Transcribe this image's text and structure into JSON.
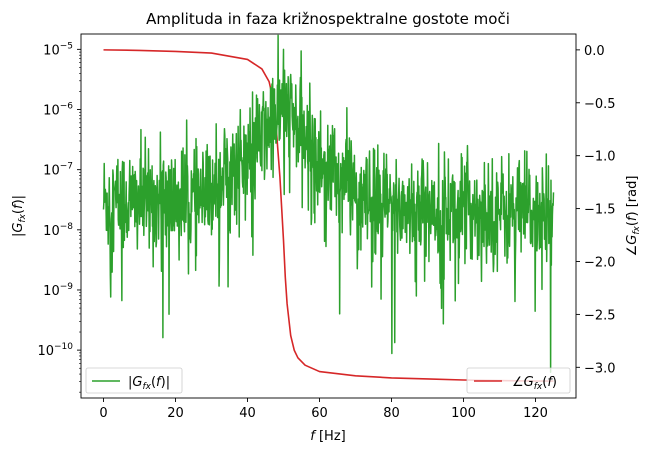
{
  "chart_data": {
    "type": "line",
    "title": "Amplituda in faza križnospektralne gostote moči",
    "xlabel": "f [Hz]",
    "ylabel_left": "|G_fx(f)|",
    "ylabel_right": "∠G_fx(f) [rad]",
    "xlim": [
      -6.25,
      131.25
    ],
    "xticks": [
      0,
      20,
      40,
      60,
      80,
      100,
      120
    ],
    "y_left_scale": "log",
    "y_left_lim": [
      1.6e-11,
      1.8e-05
    ],
    "y_left_ticks": [
      {
        "value": 1e-10,
        "mantissa": "10",
        "exp": "−10"
      },
      {
        "value": 1e-09,
        "mantissa": "10",
        "exp": "−9"
      },
      {
        "value": 1e-08,
        "mantissa": "10",
        "exp": "−8"
      },
      {
        "value": 1e-07,
        "mantissa": "10",
        "exp": "−7"
      },
      {
        "value": 1e-06,
        "mantissa": "10",
        "exp": "−6"
      },
      {
        "value": 1e-05,
        "mantissa": "10",
        "exp": "−5"
      }
    ],
    "y_right_lim": [
      -3.29,
      0.15
    ],
    "y_right_ticks": [
      {
        "value": 0.0,
        "label": "0.0"
      },
      {
        "value": -0.5,
        "label": "−0.5"
      },
      {
        "value": -1.0,
        "label": "−1.0"
      },
      {
        "value": -1.5,
        "label": "−1.5"
      },
      {
        "value": -2.0,
        "label": "−2.0"
      },
      {
        "value": -2.5,
        "label": "−2.5"
      },
      {
        "value": -3.0,
        "label": "−3.0"
      }
    ],
    "grid": false,
    "series": [
      {
        "name": "|G_fx(f)|",
        "axis": "left",
        "color": "#2ca02c",
        "legend_position": "lower-left",
        "noise_floor_approx": 3e-08,
        "resonance_hz": 50,
        "peak_value": 1e-05,
        "x_range": [
          0,
          125
        ]
      },
      {
        "name": "∠G_fx(f)",
        "axis": "right",
        "color": "#d62728",
        "legend_position": "lower-right",
        "x": [
          0,
          10,
          20,
          30,
          40,
          44,
          46,
          47,
          48,
          49,
          49.5,
          50,
          50.5,
          51,
          52,
          53,
          54,
          56,
          60,
          70,
          80,
          90,
          100,
          110,
          120,
          125
        ],
        "y": [
          0.0,
          -0.005,
          -0.015,
          -0.03,
          -0.09,
          -0.18,
          -0.3,
          -0.45,
          -0.75,
          -1.2,
          -1.5,
          -1.8,
          -2.15,
          -2.4,
          -2.7,
          -2.84,
          -2.91,
          -2.98,
          -3.04,
          -3.08,
          -3.1,
          -3.11,
          -3.12,
          -3.125,
          -3.13,
          -3.13
        ]
      }
    ]
  }
}
